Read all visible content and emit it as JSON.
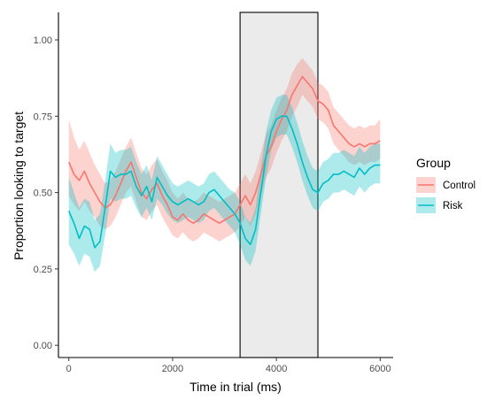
{
  "chart_data": {
    "type": "line",
    "xlabel": "Time in trial (ms)",
    "ylabel": "Proportion looking to target",
    "xlim": [
      -200,
      6250
    ],
    "ylim": [
      -0.04,
      1.09
    ],
    "x_ticks": [
      0,
      2000,
      4000,
      6000
    ],
    "x_tick_labels": [
      "0",
      "2000",
      "4000",
      "6000"
    ],
    "y_ticks": [
      0,
      0.25,
      0.5,
      0.75,
      1.0
    ],
    "y_tick_labels": [
      "0.00",
      "0.25",
      "0.50",
      "0.75",
      "1.00"
    ],
    "grid": false,
    "legend": {
      "title": "Group",
      "position": "right"
    },
    "shaded_region": {
      "x_start": 3300,
      "x_end": 4800,
      "fill": "#ebebeb",
      "stroke": "#000000"
    },
    "series": [
      {
        "name": "Control",
        "color": "#f8766d",
        "x": [
          0,
          100,
          200,
          300,
          400,
          500,
          600,
          700,
          800,
          900,
          1000,
          1100,
          1200,
          1300,
          1400,
          1500,
          1600,
          1700,
          1800,
          1900,
          2000,
          2100,
          2200,
          2300,
          2400,
          2500,
          2600,
          2700,
          2800,
          2900,
          3000,
          3100,
          3200,
          3300,
          3400,
          3500,
          3600,
          3700,
          3800,
          3900,
          4000,
          4100,
          4200,
          4300,
          4400,
          4500,
          4600,
          4700,
          4800,
          4900,
          5000,
          5100,
          5200,
          5300,
          5400,
          5500,
          5600,
          5700,
          5800,
          5900,
          6000
        ],
        "y": [
          0.6,
          0.56,
          0.54,
          0.57,
          0.53,
          0.5,
          0.47,
          0.45,
          0.46,
          0.49,
          0.53,
          0.57,
          0.6,
          0.55,
          0.5,
          0.48,
          0.51,
          0.53,
          0.49,
          0.46,
          0.42,
          0.41,
          0.43,
          0.41,
          0.4,
          0.41,
          0.43,
          0.42,
          0.41,
          0.4,
          0.41,
          0.42,
          0.43,
          0.46,
          0.49,
          0.46,
          0.5,
          0.56,
          0.62,
          0.65,
          0.7,
          0.74,
          0.77,
          0.82,
          0.85,
          0.88,
          0.86,
          0.84,
          0.8,
          0.79,
          0.77,
          0.72,
          0.7,
          0.68,
          0.66,
          0.65,
          0.66,
          0.65,
          0.66,
          0.66,
          0.67
        ],
        "lower": [
          0.49,
          0.46,
          0.44,
          0.47,
          0.44,
          0.42,
          0.39,
          0.38,
          0.39,
          0.42,
          0.46,
          0.5,
          0.52,
          0.47,
          0.42,
          0.41,
          0.44,
          0.46,
          0.42,
          0.39,
          0.36,
          0.35,
          0.37,
          0.35,
          0.34,
          0.35,
          0.37,
          0.36,
          0.35,
          0.34,
          0.35,
          0.36,
          0.37,
          0.39,
          0.42,
          0.39,
          0.43,
          0.49,
          0.55,
          0.58,
          0.63,
          0.67,
          0.7,
          0.75,
          0.78,
          0.82,
          0.8,
          0.78,
          0.74,
          0.73,
          0.71,
          0.66,
          0.64,
          0.62,
          0.6,
          0.59,
          0.6,
          0.59,
          0.6,
          0.6,
          0.61
        ],
        "upper": [
          0.74,
          0.68,
          0.64,
          0.67,
          0.63,
          0.59,
          0.56,
          0.53,
          0.54,
          0.57,
          0.61,
          0.65,
          0.68,
          0.63,
          0.58,
          0.56,
          0.59,
          0.61,
          0.57,
          0.54,
          0.5,
          0.48,
          0.5,
          0.48,
          0.47,
          0.48,
          0.5,
          0.49,
          0.48,
          0.47,
          0.48,
          0.49,
          0.5,
          0.53,
          0.56,
          0.53,
          0.57,
          0.63,
          0.69,
          0.72,
          0.77,
          0.81,
          0.84,
          0.89,
          0.92,
          0.94,
          0.92,
          0.9,
          0.86,
          0.85,
          0.83,
          0.78,
          0.76,
          0.74,
          0.72,
          0.71,
          0.72,
          0.71,
          0.72,
          0.72,
          0.74
        ]
      },
      {
        "name": "Risk",
        "color": "#00bfc4",
        "x": [
          0,
          100,
          200,
          300,
          400,
          500,
          600,
          700,
          800,
          900,
          1000,
          1100,
          1200,
          1300,
          1400,
          1500,
          1600,
          1700,
          1800,
          1900,
          2000,
          2100,
          2200,
          2300,
          2400,
          2500,
          2600,
          2700,
          2800,
          2900,
          3000,
          3100,
          3200,
          3300,
          3400,
          3500,
          3600,
          3700,
          3800,
          3900,
          4000,
          4100,
          4200,
          4300,
          4400,
          4500,
          4600,
          4700,
          4800,
          4900,
          5000,
          5100,
          5200,
          5300,
          5400,
          5500,
          5600,
          5700,
          5800,
          5900,
          6000
        ],
        "y": [
          0.44,
          0.4,
          0.35,
          0.39,
          0.38,
          0.32,
          0.34,
          0.45,
          0.57,
          0.55,
          0.56,
          0.56,
          0.57,
          0.52,
          0.49,
          0.52,
          0.47,
          0.55,
          0.52,
          0.49,
          0.47,
          0.46,
          0.47,
          0.48,
          0.47,
          0.46,
          0.47,
          0.5,
          0.51,
          0.49,
          0.47,
          0.45,
          0.43,
          0.4,
          0.35,
          0.33,
          0.38,
          0.5,
          0.62,
          0.7,
          0.74,
          0.75,
          0.75,
          0.71,
          0.66,
          0.6,
          0.55,
          0.51,
          0.5,
          0.53,
          0.54,
          0.56,
          0.56,
          0.57,
          0.56,
          0.55,
          0.58,
          0.56,
          0.58,
          0.59,
          0.59
        ],
        "lower": [
          0.33,
          0.3,
          0.26,
          0.3,
          0.29,
          0.24,
          0.26,
          0.36,
          0.48,
          0.47,
          0.48,
          0.48,
          0.49,
          0.45,
          0.42,
          0.45,
          0.41,
          0.48,
          0.46,
          0.43,
          0.41,
          0.4,
          0.41,
          0.42,
          0.41,
          0.4,
          0.41,
          0.44,
          0.45,
          0.43,
          0.41,
          0.39,
          0.37,
          0.33,
          0.28,
          0.26,
          0.31,
          0.43,
          0.55,
          0.64,
          0.68,
          0.69,
          0.69,
          0.65,
          0.6,
          0.54,
          0.49,
          0.45,
          0.44,
          0.47,
          0.48,
          0.5,
          0.5,
          0.51,
          0.5,
          0.49,
          0.52,
          0.5,
          0.52,
          0.53,
          0.53
        ],
        "upper": [
          0.55,
          0.5,
          0.45,
          0.48,
          0.47,
          0.41,
          0.43,
          0.54,
          0.66,
          0.63,
          0.64,
          0.64,
          0.65,
          0.6,
          0.56,
          0.59,
          0.54,
          0.62,
          0.59,
          0.56,
          0.53,
          0.52,
          0.53,
          0.54,
          0.53,
          0.52,
          0.53,
          0.56,
          0.57,
          0.55,
          0.53,
          0.51,
          0.5,
          0.47,
          0.42,
          0.4,
          0.45,
          0.58,
          0.7,
          0.77,
          0.81,
          0.82,
          0.82,
          0.78,
          0.73,
          0.67,
          0.62,
          0.58,
          0.57,
          0.6,
          0.61,
          0.63,
          0.63,
          0.64,
          0.63,
          0.62,
          0.65,
          0.63,
          0.65,
          0.66,
          0.66
        ]
      }
    ]
  }
}
